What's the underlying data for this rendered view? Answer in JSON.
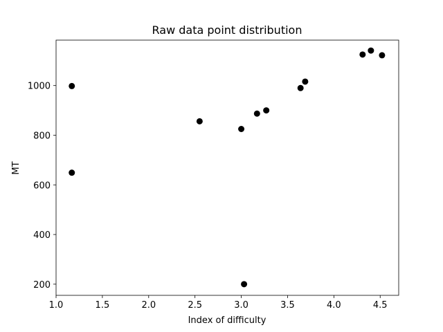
{
  "chart_data": {
    "type": "scatter",
    "title": "Raw data point distribution",
    "xlabel": "Index of difficulty",
    "ylabel": "MT",
    "xlim": [
      1.0,
      4.7
    ],
    "ylim": [
      155,
      1183
    ],
    "xticks": [
      1.0,
      1.5,
      2.0,
      2.5,
      3.0,
      3.5,
      4.0,
      4.5
    ],
    "xtick_labels": [
      "1.0",
      "1.5",
      "2.0",
      "2.5",
      "3.0",
      "3.5",
      "4.0",
      "4.5"
    ],
    "yticks": [
      200,
      400,
      600,
      800,
      1000
    ],
    "ytick_labels": [
      "200",
      "400",
      "600",
      "800",
      "1000"
    ],
    "grid": false,
    "marker_color": "#000000",
    "points": [
      {
        "x": 1.17,
        "y": 998
      },
      {
        "x": 1.17,
        "y": 649
      },
      {
        "x": 2.55,
        "y": 856
      },
      {
        "x": 3.0,
        "y": 825
      },
      {
        "x": 3.03,
        "y": 200
      },
      {
        "x": 3.17,
        "y": 887
      },
      {
        "x": 3.27,
        "y": 900
      },
      {
        "x": 3.64,
        "y": 990
      },
      {
        "x": 3.69,
        "y": 1016
      },
      {
        "x": 4.31,
        "y": 1125
      },
      {
        "x": 4.4,
        "y": 1141
      },
      {
        "x": 4.52,
        "y": 1122
      }
    ]
  }
}
